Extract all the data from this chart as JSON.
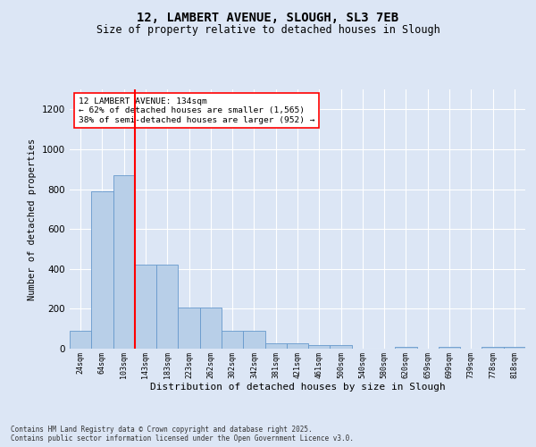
{
  "title_line1": "12, LAMBERT AVENUE, SLOUGH, SL3 7EB",
  "title_line2": "Size of property relative to detached houses in Slough",
  "xlabel": "Distribution of detached houses by size in Slough",
  "ylabel": "Number of detached properties",
  "bins": [
    "24sqm",
    "64sqm",
    "103sqm",
    "143sqm",
    "183sqm",
    "223sqm",
    "262sqm",
    "302sqm",
    "342sqm",
    "381sqm",
    "421sqm",
    "461sqm",
    "500sqm",
    "540sqm",
    "580sqm",
    "620sqm",
    "659sqm",
    "699sqm",
    "739sqm",
    "778sqm",
    "818sqm"
  ],
  "bar_heights": [
    90,
    790,
    870,
    420,
    420,
    205,
    205,
    90,
    90,
    25,
    25,
    20,
    20,
    0,
    0,
    10,
    0,
    10,
    0,
    10,
    10
  ],
  "bar_color": "#b8cfe8",
  "bar_edge_color": "#6699cc",
  "bg_color": "#dce6f5",
  "grid_color": "#ffffff",
  "vline_color": "red",
  "vline_pos": 2.5,
  "annotation_text": "12 LAMBERT AVENUE: 134sqm\n← 62% of detached houses are smaller (1,565)\n38% of semi-detached houses are larger (952) →",
  "annotation_box_color": "white",
  "annotation_box_edge": "red",
  "footnote": "Contains HM Land Registry data © Crown copyright and database right 2025.\nContains public sector information licensed under the Open Government Licence v3.0.",
  "ylim": [
    0,
    1300
  ],
  "yticks": [
    0,
    200,
    400,
    600,
    800,
    1000,
    1200
  ]
}
